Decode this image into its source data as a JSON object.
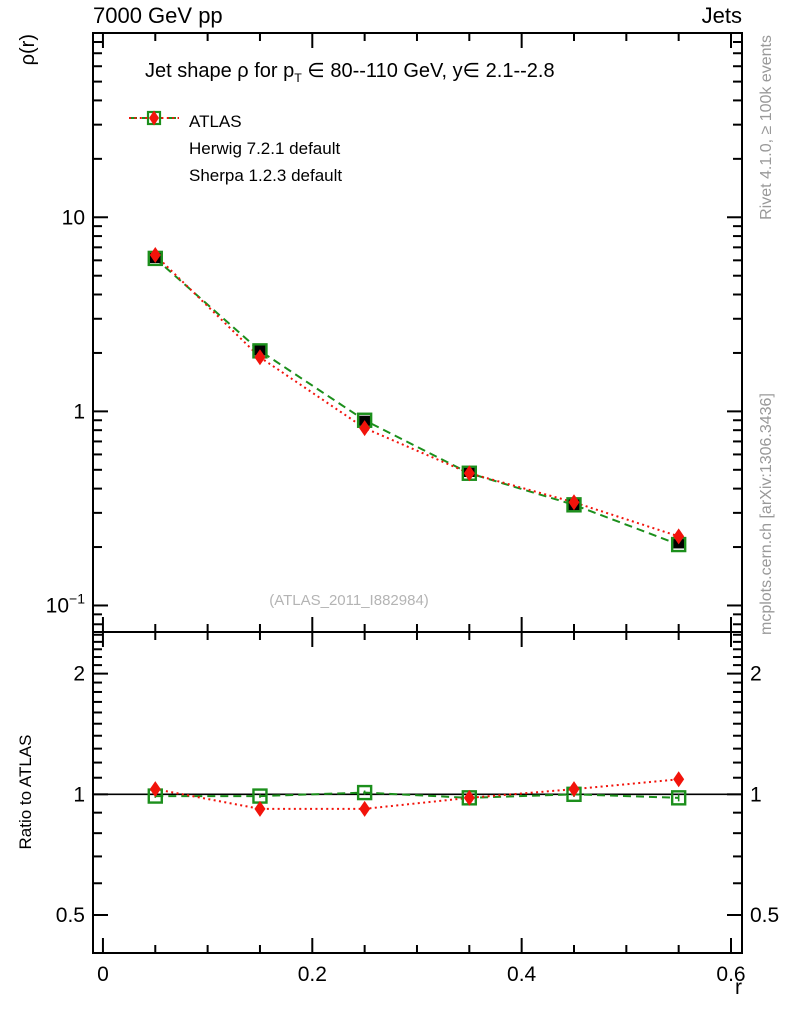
{
  "header": {
    "left": "7000 GeV pp",
    "right": "Jets"
  },
  "plot": {
    "title_prefix": "Jet shape ρ for p",
    "title_sub": "T",
    "title_suffix": " ∈ 80--110 GeV, y∈ 2.1--2.8",
    "watermark": "(ATLAS_2011_I882984)",
    "x_label": "r",
    "y_label_top": "ρ(r)",
    "y_label_ratio": "Ratio to ATLAS"
  },
  "side_notes": {
    "top": "Rivet 4.1.0, ≥ 100k events",
    "bottom": "mcplots.cern.ch [arXiv:1306.3436]"
  },
  "legend": {
    "items": [
      {
        "label": "ATLAS"
      },
      {
        "label": "Herwig 7.2.1 default"
      },
      {
        "label": "Sherpa 1.2.3 default"
      }
    ]
  },
  "chart_data": {
    "type": "line",
    "title": "Jet shape ρ for pT ∈ 80--110 GeV, y ∈ 2.1--2.8",
    "xlabel": "r",
    "x": [
      0.05,
      0.15,
      0.25,
      0.35,
      0.45,
      0.55
    ],
    "x_range": [
      -0.0095,
      0.6105
    ],
    "x_major_ticks": [
      {
        "v": 0,
        "label": "0"
      },
      {
        "v": 0.2,
        "label": "0.2"
      },
      {
        "v": 0.4,
        "label": "0.4"
      },
      {
        "v": 0.6,
        "label": "0.6"
      }
    ],
    "x_minor_step": 0.05,
    "top_panel": {
      "ylabel": "ρ(r)",
      "y_scale": "log",
      "y_range": [
        0.073,
        89
      ],
      "y_major_ticks": [
        {
          "v": 10,
          "label": "10"
        },
        {
          "v": 1,
          "label": "1"
        },
        {
          "v": 0.1,
          "label": "10",
          "exp": "−1"
        }
      ],
      "series": [
        {
          "name": "ATLAS",
          "color": "#000000",
          "marker": "filled-square",
          "line": "none",
          "values": [
            6.2,
            2.07,
            0.89,
            0.49,
            0.33,
            0.21
          ],
          "rel_err": [
            0.02,
            0.02,
            0.02,
            0.02,
            0.02,
            0.03
          ]
        },
        {
          "name": "Herwig 7.2.1 default",
          "color": "#1c8f1c",
          "marker": "open-square",
          "line": "dashed",
          "values": [
            6.14,
            2.05,
            0.9,
            0.48,
            0.33,
            0.206
          ],
          "rel_err": [
            0.01,
            0.01,
            0.01,
            0.01,
            0.012,
            0.015
          ]
        },
        {
          "name": "Sherpa 1.2.3 default",
          "color": "#f2130b",
          "marker": "filled-diamond",
          "line": "dotted",
          "values": [
            6.39,
            1.9,
            0.82,
            0.48,
            0.34,
            0.227
          ],
          "rel_err": [
            0.025,
            0.02,
            0.025,
            0.02,
            0.02,
            0.03
          ]
        }
      ]
    },
    "ratio_panel": {
      "ylabel": "Ratio to ATLAS",
      "y_scale": "log",
      "y_range": [
        0.402,
        2.54
      ],
      "reference_line": 1,
      "y_major_ticks": [
        {
          "v": 2,
          "label": "2"
        },
        {
          "v": 1,
          "label": "1"
        },
        {
          "v": 0.5,
          "label": "0.5"
        }
      ],
      "series": [
        {
          "name": "Herwig 7.2.1 default",
          "color": "#1c8f1c",
          "marker": "open-square",
          "line": "dashed",
          "values": [
            0.99,
            0.99,
            1.01,
            0.98,
            1.0,
            0.98
          ],
          "rel_err": [
            0.01,
            0.01,
            0.012,
            0.012,
            0.015,
            0.02
          ]
        },
        {
          "name": "Sherpa 1.2.3 default",
          "color": "#f2130b",
          "marker": "filled-diamond",
          "line": "dotted",
          "values": [
            1.03,
            0.92,
            0.92,
            0.98,
            1.03,
            1.09
          ],
          "rel_err": [
            0.012,
            0.015,
            0.025,
            0.022,
            0.02,
            0.03
          ]
        }
      ]
    }
  }
}
